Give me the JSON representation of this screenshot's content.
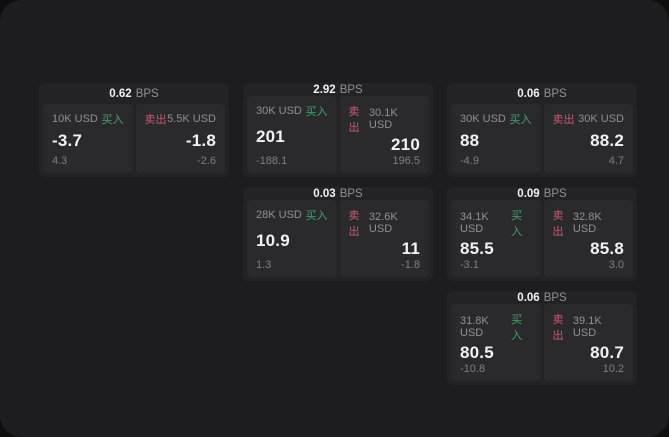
{
  "labels": {
    "bps_unit": "BPS",
    "buy": "买入",
    "sell": "卖出"
  },
  "colors": {
    "window_bg": "#1d1d1f",
    "card_bg": "#232325",
    "panel_bg": "#2a2a2d",
    "text_primary": "#f2f2f2",
    "text_secondary": "#909095",
    "text_tertiary": "#7f7f84",
    "buy": "#3fa46c",
    "sell": "#c75a6e"
  },
  "cards": [
    {
      "col": 1,
      "row": 1,
      "bps": "0.62",
      "buy": {
        "size": "10K USD",
        "price": "-3.7",
        "delta": "4.3"
      },
      "sell": {
        "size": "5.5K USD",
        "price": "-1.8",
        "delta": "-2.6"
      }
    },
    {
      "col": 2,
      "row": 1,
      "bps": "2.92",
      "buy": {
        "size": "30K USD",
        "price": "201",
        "delta": "-188.1"
      },
      "sell": {
        "size": "30.1K USD",
        "price": "210",
        "delta": "196.5"
      }
    },
    {
      "col": 3,
      "row": 1,
      "bps": "0.06",
      "buy": {
        "size": "30K USD",
        "price": "88",
        "delta": "-4.9"
      },
      "sell": {
        "size": "30K USD",
        "price": "88.2",
        "delta": "4.7"
      }
    },
    {
      "col": 2,
      "row": 2,
      "bps": "0.03",
      "buy": {
        "size": "28K USD",
        "price": "10.9",
        "delta": "1.3"
      },
      "sell": {
        "size": "32.6K USD",
        "price": "11",
        "delta": "-1.8"
      }
    },
    {
      "col": 3,
      "row": 2,
      "bps": "0.09",
      "buy": {
        "size": "34.1K USD",
        "price": "85.5",
        "delta": "-3.1"
      },
      "sell": {
        "size": "32.8K USD",
        "price": "85.8",
        "delta": "3.0"
      }
    },
    {
      "col": 3,
      "row": 3,
      "bps": "0.06",
      "buy": {
        "size": "31.8K USD",
        "price": "80.5",
        "delta": "-10.8"
      },
      "sell": {
        "size": "39.1K USD",
        "price": "80.7",
        "delta": "10.2"
      }
    }
  ]
}
